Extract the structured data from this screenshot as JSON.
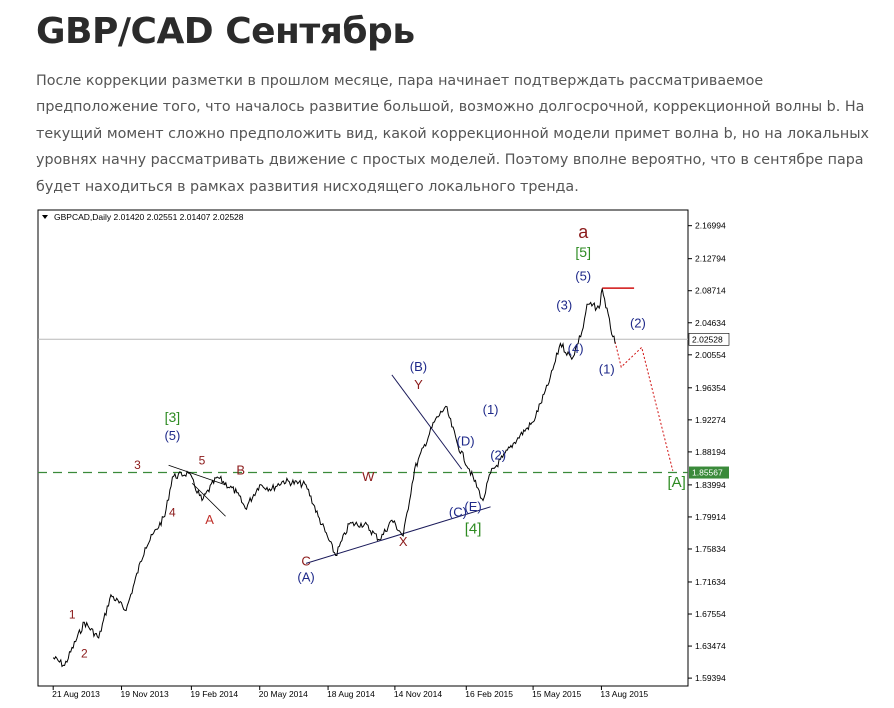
{
  "page": {
    "title": "GBP/CAD Сентябрь",
    "description": "После коррекции разметки в прошлом месяце, пара начинает подтверждать рассматриваемое предположение того, что началось развитие большой, возможно долгосрочной, коррекционной волны b. На текущий момент сложно предположить вид, какой коррекционной модели примет волна b, но на локальных уровнях начну рассматривать движение с простых моделей. Поэтому вполне вероятно, что в сентябре пара будет находиться в рамках развития нисходящего локального тренда."
  },
  "chart_data": {
    "type": "line",
    "title": "GBPCAD,Daily  2.01420 2.02551 2.01407 2.02528",
    "symbol": "GBPCAD,Daily",
    "ohlc": {
      "open": "2.01420",
      "high": "2.02551",
      "low": "2.01407",
      "close": "2.02528"
    },
    "ylim": [
      1.5839,
      2.1899
    ],
    "y_ticks": [
      "2.16994",
      "2.12794",
      "2.08714",
      "2.04634",
      "2.00554",
      "1.96354",
      "1.92274",
      "1.88194",
      "1.83994",
      "1.79914",
      "1.75834",
      "1.71634",
      "1.67554",
      "1.63474",
      "1.59394"
    ],
    "x_ticks": [
      "21 Aug 2013",
      "19 Nov 2013",
      "19 Feb 2014",
      "20 May 2014",
      "18 Aug 2014",
      "14 Nov 2014",
      "16 Feb 2015",
      "15 May 2015",
      "13 Aug 2015"
    ],
    "price_marker": {
      "label": "2.02528",
      "value": 2.02528
    },
    "level_marker": {
      "label": "1.85567",
      "value": 1.85567,
      "style": "dashed",
      "color": "#3a8a3a"
    },
    "series": [
      {
        "x": [
          "2013-08-21",
          "2013-09-05",
          "2013-10-01",
          "2013-10-20",
          "2013-11-05",
          "2013-11-25",
          "2013-12-20",
          "2014-01-15",
          "2014-01-25",
          "2014-02-15",
          "2014-03-05",
          "2014-03-25",
          "2014-04-20",
          "2014-05-01",
          "2014-05-20",
          "2014-06-05",
          "2014-06-20",
          "2014-07-20",
          "2014-08-05",
          "2014-08-28",
          "2014-09-15",
          "2014-10-05",
          "2014-10-25",
          "2014-11-10",
          "2014-11-25",
          "2014-12-10",
          "2015-01-05",
          "2015-01-20",
          "2015-02-05",
          "2015-02-20",
          "2015-03-10",
          "2015-03-20",
          "2015-04-05",
          "2015-04-25",
          "2015-05-15",
          "2015-06-05",
          "2015-06-20",
          "2015-07-05",
          "2015-07-20",
          "2015-07-25",
          "2015-08-10",
          "2015-08-14",
          "2015-08-25",
          "2015-08-31"
        ],
        "values": [
          1.62,
          1.61,
          1.665,
          1.645,
          1.7,
          1.68,
          1.76,
          1.8,
          1.85,
          1.855,
          1.82,
          1.85,
          1.83,
          1.81,
          1.84,
          1.835,
          1.845,
          1.84,
          1.8,
          1.75,
          1.79,
          1.79,
          1.77,
          1.795,
          1.775,
          1.86,
          1.92,
          1.94,
          1.89,
          1.86,
          1.82,
          1.855,
          1.875,
          1.9,
          1.92,
          1.97,
          2.02,
          2.0,
          2.04,
          2.07,
          2.065,
          2.09,
          2.04,
          2.02
        ]
      }
    ],
    "annotations": [
      {
        "text": "1",
        "color": "#8b1a1a"
      },
      {
        "text": "2",
        "color": "#8b1a1a"
      },
      {
        "text": "3",
        "color": "#8b1a1a"
      },
      {
        "text": "4",
        "color": "#8b1a1a"
      },
      {
        "text": "5",
        "color": "#8b1a1a"
      },
      {
        "text": "A",
        "color": "#c0302a"
      },
      {
        "text": "B",
        "color": "#8b1a1a"
      },
      {
        "text": "C",
        "color": "#8b1a1a"
      },
      {
        "text": "W",
        "color": "#8b1a1a"
      },
      {
        "text": "X",
        "color": "#8b1a1a"
      },
      {
        "text": "Y",
        "color": "#8b1a1a"
      },
      {
        "text": "[3]",
        "color": "#2e8b22"
      },
      {
        "text": "(5)",
        "color": "#1f2a8a"
      },
      {
        "text": "(A)",
        "color": "#1f2a8a"
      },
      {
        "text": "(B)",
        "color": "#1f2a8a"
      },
      {
        "text": "(C)",
        "color": "#1f2a8a"
      },
      {
        "text": "(D)",
        "color": "#1f2a8a"
      },
      {
        "text": "(E)",
        "color": "#1f2a8a"
      },
      {
        "text": "[4]",
        "color": "#2e8b22"
      },
      {
        "text": "(1)",
        "color": "#1f2a8a"
      },
      {
        "text": "(2)",
        "color": "#1f2a8a"
      },
      {
        "text": "(3)",
        "color": "#1f2a8a"
      },
      {
        "text": "(4)",
        "color": "#1f2a8a"
      },
      {
        "text": "(5)",
        "color": "#1f2a8a"
      },
      {
        "text": "[5]",
        "color": "#2e8b22"
      },
      {
        "text": "a",
        "color": "#8b1a1a"
      },
      {
        "text": "(1)",
        "color": "#1f2a8a"
      },
      {
        "text": "(2)",
        "color": "#1f2a8a"
      },
      {
        "text": "[A]",
        "color": "#2e8b22"
      }
    ],
    "colors": {
      "price": "#000000",
      "forecast": "#d01010",
      "trendline": "#1a1a5a",
      "resistance": "#d01010"
    }
  }
}
